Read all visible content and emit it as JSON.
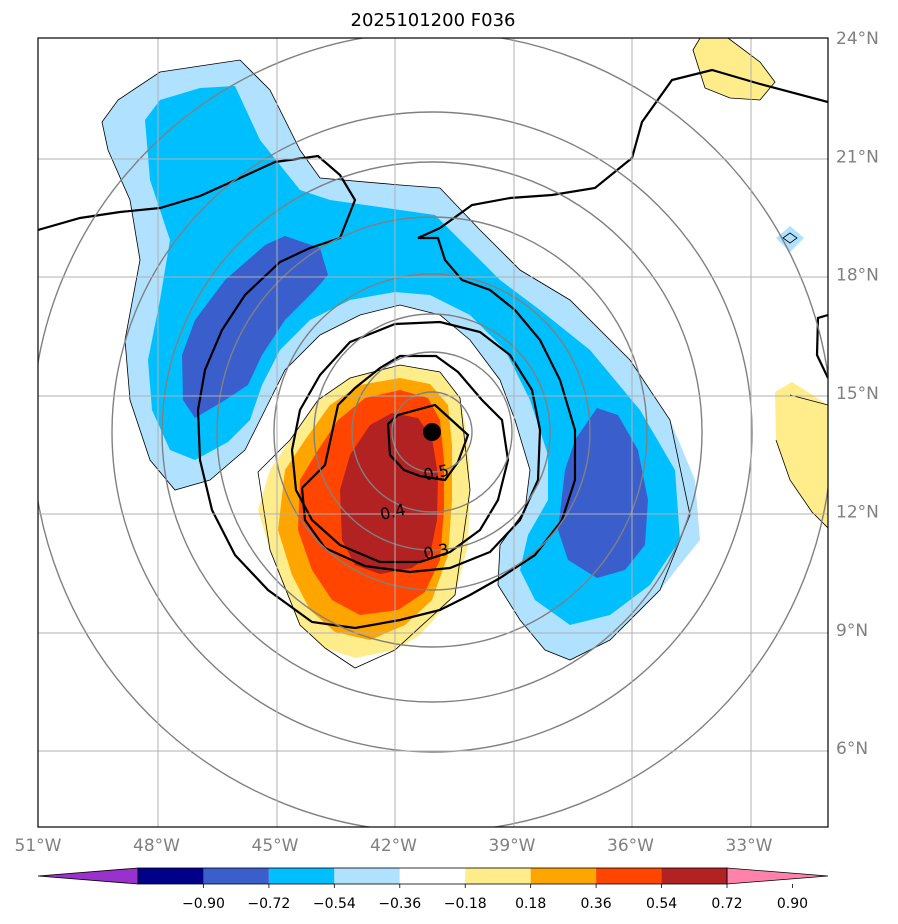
{
  "chart_data": {
    "type": "contour_map",
    "title": "2025101200 F036",
    "x_axis": {
      "unit": "degrees longitude",
      "range": [
        -51,
        -31
      ],
      "ticks": [
        {
          "value": -51,
          "label": "51°W"
        },
        {
          "value": -48,
          "label": "48°W"
        },
        {
          "value": -45,
          "label": "45°W"
        },
        {
          "value": -42,
          "label": "42°W"
        },
        {
          "value": -39,
          "label": "39°W"
        },
        {
          "value": -36,
          "label": "36°W"
        },
        {
          "value": -33,
          "label": "33°W"
        }
      ]
    },
    "y_axis": {
      "unit": "degrees latitude",
      "range": [
        4,
        24
      ],
      "ticks": [
        {
          "value": 24,
          "label": "24°N"
        },
        {
          "value": 21,
          "label": "21°N"
        },
        {
          "value": 18,
          "label": "18°N"
        },
        {
          "value": 15,
          "label": "15°N"
        },
        {
          "value": 12,
          "label": "12°N"
        },
        {
          "value": 9,
          "label": "9°N"
        },
        {
          "value": 6,
          "label": "6°N"
        }
      ]
    },
    "grid": true,
    "storm_center": {
      "lon": -41.1,
      "lat": 14.1
    },
    "range_rings_deg": [
      1,
      2,
      3,
      4,
      5,
      6,
      7,
      8
    ],
    "contour_labels": [
      {
        "text": "0.5",
        "lon": -40.9,
        "lat": 12.9
      },
      {
        "text": "0.4",
        "lon": -42.0,
        "lat": 11.9
      },
      {
        "text": "0.3",
        "lon": -40.9,
        "lat": 10.9
      }
    ],
    "colorbar": {
      "levels": [
        "−0.90",
        "−0.72",
        "−0.54",
        "−0.36",
        "−0.18",
        "0.18",
        "0.36",
        "0.54",
        "0.72",
        "0.90"
      ],
      "colors": [
        "#9932cc",
        "#00008b",
        "#3a5fcd",
        "#00bfff",
        "#b0e2ff",
        "#ffffff",
        "#ffec8b",
        "#ffa500",
        "#ff4500",
        "#b22222",
        "#ff82ab"
      ],
      "extend": "both"
    }
  }
}
